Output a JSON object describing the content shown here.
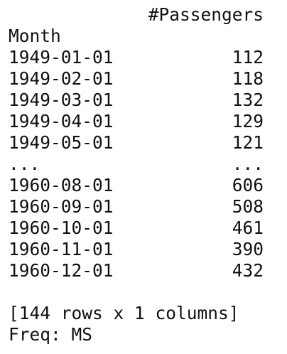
{
  "dataframe": {
    "column_header": "#Passengers",
    "index_name": "Month",
    "rows": [
      {
        "index": "1949-01-01",
        "value": "112"
      },
      {
        "index": "1949-02-01",
        "value": "118"
      },
      {
        "index": "1949-03-01",
        "value": "132"
      },
      {
        "index": "1949-04-01",
        "value": "129"
      },
      {
        "index": "1949-05-01",
        "value": "121"
      },
      {
        "index": "...",
        "value": "..."
      },
      {
        "index": "1960-08-01",
        "value": "606"
      },
      {
        "index": "1960-09-01",
        "value": "508"
      },
      {
        "index": "1960-10-01",
        "value": "461"
      },
      {
        "index": "1960-11-01",
        "value": "390"
      },
      {
        "index": "1960-12-01",
        "value": "432"
      }
    ],
    "shape_text": "[144 rows x 1 columns]",
    "freq_text": "Freq: MS"
  }
}
